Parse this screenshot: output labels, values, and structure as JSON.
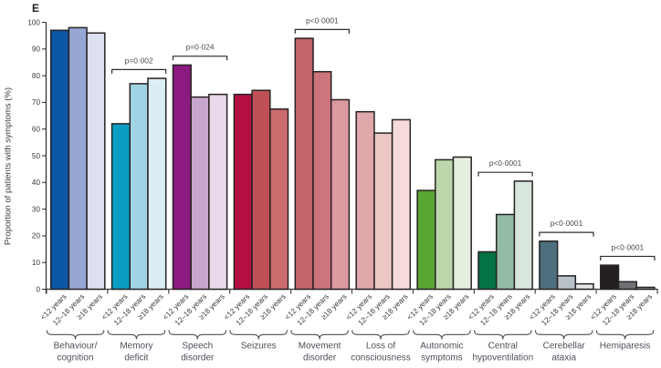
{
  "panel_label": "E",
  "colors": {
    "background": "#ffffff",
    "axis": "#363636",
    "bar_outline": "#272223",
    "tick_label_text": "#3a3a3a",
    "category_label_text": "#4a5058",
    "p_value_text": "#474a50",
    "bracket_line": "#2d2d2d",
    "brace_line": "#4f4f4f"
  },
  "chart_data": {
    "type": "bar",
    "title": "",
    "xlabel": "",
    "ylabel": "Proportion of patients with symptoms (%)",
    "ylim": [
      0,
      100
    ],
    "yticks": [
      0,
      10,
      20,
      30,
      40,
      50,
      60,
      70,
      80,
      90,
      100
    ],
    "grid": "off",
    "legend": "none",
    "age_group_labels": [
      "<12 years",
      "12–18 years",
      "≥18 years"
    ],
    "groups": [
      {
        "category": "Behaviour/cognition",
        "label_lines": [
          "Behaviour/",
          "cognition"
        ],
        "values": [
          97,
          98,
          96
        ],
        "colors": [
          "#0b57a4",
          "#96a7d3",
          "#dce0f0"
        ],
        "p_value": null
      },
      {
        "category": "Memory deficit",
        "label_lines": [
          "Memory",
          "deficit"
        ],
        "values": [
          62,
          77,
          79
        ],
        "colors": [
          "#0a9ec3",
          "#9fd4e5",
          "#dceef5"
        ],
        "p_value": "p=0·002"
      },
      {
        "category": "Speech disorder",
        "label_lines": [
          "Speech",
          "disorder"
        ],
        "values": [
          84,
          72,
          73
        ],
        "colors": [
          "#8c1a80",
          "#c7a6cd",
          "#e9d9ea"
        ],
        "p_value": "p=0·024"
      },
      {
        "category": "Seizures",
        "label_lines": [
          "Seizures"
        ],
        "values": [
          73,
          74.5,
          67.5
        ],
        "colors": [
          "#b30f40",
          "#c05058",
          "#ca6b6e"
        ],
        "p_value": null
      },
      {
        "category": "Movement disorder",
        "label_lines": [
          "Movement",
          "disorder"
        ],
        "values": [
          94,
          81.5,
          71
        ],
        "colors": [
          "#c4646b",
          "#cc757b",
          "#db99a0"
        ],
        "p_value": "p<0·0001"
      },
      {
        "category": "Loss of consciousness",
        "label_lines": [
          "Loss of",
          "consciousness"
        ],
        "values": [
          66.5,
          58.5,
          63.5
        ],
        "colors": [
          "#dfa8aa",
          "#ecc7c4",
          "#f5dcdb"
        ],
        "p_value": null
      },
      {
        "category": "Autonomic symptoms",
        "label_lines": [
          "Autonomic",
          "symptoms"
        ],
        "values": [
          37,
          48.5,
          49.5
        ],
        "colors": [
          "#5aa634",
          "#bcd7ab",
          "#e4efdf"
        ],
        "p_value": null
      },
      {
        "category": "Central hypoventilation",
        "label_lines": [
          "Central",
          "hypoventilation"
        ],
        "values": [
          14,
          28,
          40.5
        ],
        "colors": [
          "#057243",
          "#92bba3",
          "#d8e7dd"
        ],
        "p_value": "p<0·0001"
      },
      {
        "category": "Cerebellar ataxia",
        "label_lines": [
          "Cerebellar",
          "ataxia"
        ],
        "values": [
          18,
          5,
          2
        ],
        "colors": [
          "#4e6f7e",
          "#b8c2c8",
          "#e3e7ea"
        ],
        "p_value": "p<0·0001"
      },
      {
        "category": "Hemiparesis",
        "label_lines": [
          "Hemiparesis"
        ],
        "values": [
          9,
          2.8,
          0.7
        ],
        "colors": [
          "#242021",
          "#6f7073",
          "#a9abad"
        ],
        "p_value": "p<0·0001"
      }
    ]
  }
}
